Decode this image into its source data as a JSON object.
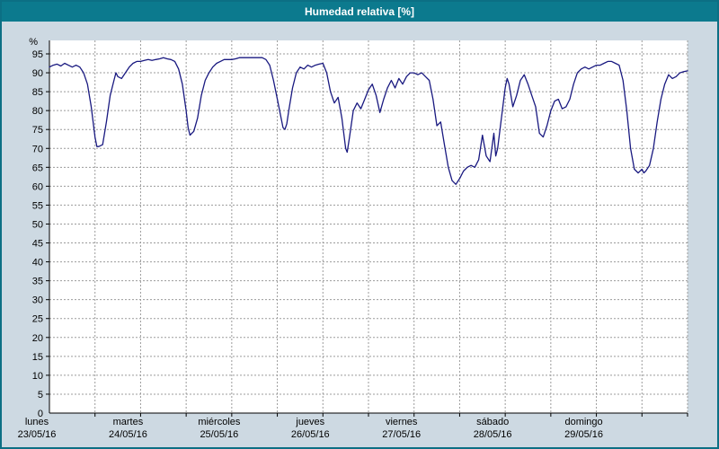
{
  "colors": {
    "titlebar_bg": "#0c7a8e",
    "titlebar_text": "#ffffff",
    "frame_border": "#0c6f84",
    "frame_bg": "#cdd9e2",
    "plot_bg": "#ffffff",
    "grid": "#9b9b9b",
    "axis": "#000000",
    "line": "#191980"
  },
  "chart_data": {
    "type": "line",
    "title": "Humedad relativa [%]",
    "ylabel": "%",
    "origin_label": "0",
    "ylim": [
      0,
      98.5
    ],
    "grid": "dashed",
    "legend": "none",
    "y_ticks": [
      5,
      10,
      15,
      20,
      25,
      30,
      35,
      40,
      45,
      50,
      55,
      60,
      65,
      70,
      75,
      80,
      85,
      90,
      95
    ],
    "x_range_hours": [
      0,
      168
    ],
    "x_grid_interval": 12,
    "x_labels": [
      {
        "name": "lunes",
        "date": "23/05/16"
      },
      {
        "name": "martes",
        "date": "24/05/16"
      },
      {
        "name": "miércoles",
        "date": "25/05/16"
      },
      {
        "name": "jueves",
        "date": "26/05/16"
      },
      {
        "name": "viernes",
        "date": "27/05/16"
      },
      {
        "name": "sábado",
        "date": "28/05/16"
      },
      {
        "name": "domingo",
        "date": "29/05/16"
      }
    ],
    "series": [
      {
        "name": "Humedad relativa",
        "unit": "%",
        "color": "#191980",
        "points_hour_value": [
          [
            0,
            91.5
          ],
          [
            1,
            92
          ],
          [
            2,
            92.3
          ],
          [
            3,
            91.8
          ],
          [
            4,
            92.5
          ],
          [
            5,
            92
          ],
          [
            6,
            91.5
          ],
          [
            7,
            92
          ],
          [
            8,
            91.5
          ],
          [
            9,
            90
          ],
          [
            10,
            87
          ],
          [
            11,
            81
          ],
          [
            12,
            73
          ],
          [
            12.5,
            70.5
          ],
          [
            13,
            70.5
          ],
          [
            14,
            71
          ],
          [
            15,
            77
          ],
          [
            16,
            84
          ],
          [
            17,
            88
          ],
          [
            17.5,
            90
          ],
          [
            18,
            89
          ],
          [
            19,
            88.5
          ],
          [
            20,
            90
          ],
          [
            21,
            91.5
          ],
          [
            22,
            92.5
          ],
          [
            23,
            93
          ],
          [
            24,
            93
          ],
          [
            25,
            93.3
          ],
          [
            26,
            93.5
          ],
          [
            27,
            93.3
          ],
          [
            28,
            93.5
          ],
          [
            29,
            93.7
          ],
          [
            30,
            94
          ],
          [
            31,
            93.7
          ],
          [
            32,
            93.5
          ],
          [
            33,
            93
          ],
          [
            34,
            91
          ],
          [
            35,
            87
          ],
          [
            36,
            80
          ],
          [
            36.5,
            75.5
          ],
          [
            37,
            73.5
          ],
          [
            38,
            74.5
          ],
          [
            39,
            78
          ],
          [
            40,
            84
          ],
          [
            41,
            88
          ],
          [
            42,
            90
          ],
          [
            43,
            91.5
          ],
          [
            44,
            92.5
          ],
          [
            45,
            93
          ],
          [
            46,
            93.5
          ],
          [
            47,
            93.5
          ],
          [
            48,
            93.5
          ],
          [
            49,
            93.7
          ],
          [
            50,
            94
          ],
          [
            51,
            94
          ],
          [
            52,
            94
          ],
          [
            53,
            94
          ],
          [
            54,
            94
          ],
          [
            55,
            94
          ],
          [
            56,
            94
          ],
          [
            57,
            93.5
          ],
          [
            58,
            92
          ],
          [
            59,
            88
          ],
          [
            60,
            83
          ],
          [
            61,
            78
          ],
          [
            61.5,
            75.5
          ],
          [
            62,
            75
          ],
          [
            62.5,
            76.5
          ],
          [
            63,
            80
          ],
          [
            64,
            86
          ],
          [
            65,
            90
          ],
          [
            66,
            91.5
          ],
          [
            67,
            91
          ],
          [
            68,
            92
          ],
          [
            69,
            91.5
          ],
          [
            70,
            92
          ],
          [
            71,
            92.3
          ],
          [
            72,
            92.5
          ],
          [
            73,
            90
          ],
          [
            74,
            85
          ],
          [
            75,
            82
          ],
          [
            76,
            83.5
          ],
          [
            77,
            78
          ],
          [
            78,
            70
          ],
          [
            78.4,
            69
          ],
          [
            79,
            73
          ],
          [
            80,
            80
          ],
          [
            81,
            82
          ],
          [
            82,
            80.5
          ],
          [
            83,
            83
          ],
          [
            84,
            85.5
          ],
          [
            85,
            87
          ],
          [
            86,
            84
          ],
          [
            87,
            79.5
          ],
          [
            88,
            83
          ],
          [
            89,
            86
          ],
          [
            90,
            88
          ],
          [
            91,
            86
          ],
          [
            92,
            88.5
          ],
          [
            93,
            87
          ],
          [
            94,
            89
          ],
          [
            95,
            90
          ],
          [
            96,
            90
          ],
          [
            97,
            89.5
          ],
          [
            98,
            90
          ],
          [
            99,
            89
          ],
          [
            100,
            88
          ],
          [
            101,
            83
          ],
          [
            102,
            76
          ],
          [
            103,
            77
          ],
          [
            104,
            71
          ],
          [
            105,
            65
          ],
          [
            106,
            61.5
          ],
          [
            107,
            60.5
          ],
          [
            108,
            62
          ],
          [
            109,
            64
          ],
          [
            110,
            65
          ],
          [
            111,
            65.5
          ],
          [
            112,
            65
          ],
          [
            113,
            67
          ],
          [
            114,
            73.5
          ],
          [
            115,
            68
          ],
          [
            116,
            66.5
          ],
          [
            117,
            74
          ],
          [
            117.5,
            68
          ],
          [
            118,
            70
          ],
          [
            119,
            78
          ],
          [
            120,
            86
          ],
          [
            120.5,
            88.5
          ],
          [
            121,
            87
          ],
          [
            122,
            81
          ],
          [
            123,
            84
          ],
          [
            124,
            88
          ],
          [
            125,
            89.5
          ],
          [
            126,
            87
          ],
          [
            127,
            84
          ],
          [
            128,
            81
          ],
          [
            129,
            74
          ],
          [
            130,
            73
          ],
          [
            131,
            76
          ],
          [
            132,
            80
          ],
          [
            133,
            82.5
          ],
          [
            134,
            83
          ],
          [
            135,
            80.5
          ],
          [
            136,
            81
          ],
          [
            137,
            83
          ],
          [
            138,
            87
          ],
          [
            139,
            90
          ],
          [
            140,
            91
          ],
          [
            141,
            91.5
          ],
          [
            142,
            91
          ],
          [
            143,
            91.5
          ],
          [
            144,
            92
          ],
          [
            145,
            92
          ],
          [
            146,
            92.5
          ],
          [
            147,
            93
          ],
          [
            148,
            93
          ],
          [
            149,
            92.5
          ],
          [
            150,
            92
          ],
          [
            151,
            88
          ],
          [
            152,
            80
          ],
          [
            153,
            70
          ],
          [
            154,
            64.5
          ],
          [
            155,
            63.5
          ],
          [
            156,
            64.5
          ],
          [
            156.5,
            63.5
          ],
          [
            157,
            64
          ],
          [
            158,
            65.5
          ],
          [
            159,
            70
          ],
          [
            160,
            77
          ],
          [
            161,
            83
          ],
          [
            162,
            87
          ],
          [
            163,
            89.5
          ],
          [
            164,
            88.5
          ],
          [
            165,
            89
          ],
          [
            166,
            90
          ],
          [
            167,
            90.3
          ],
          [
            168,
            90.5
          ]
        ]
      }
    ]
  }
}
